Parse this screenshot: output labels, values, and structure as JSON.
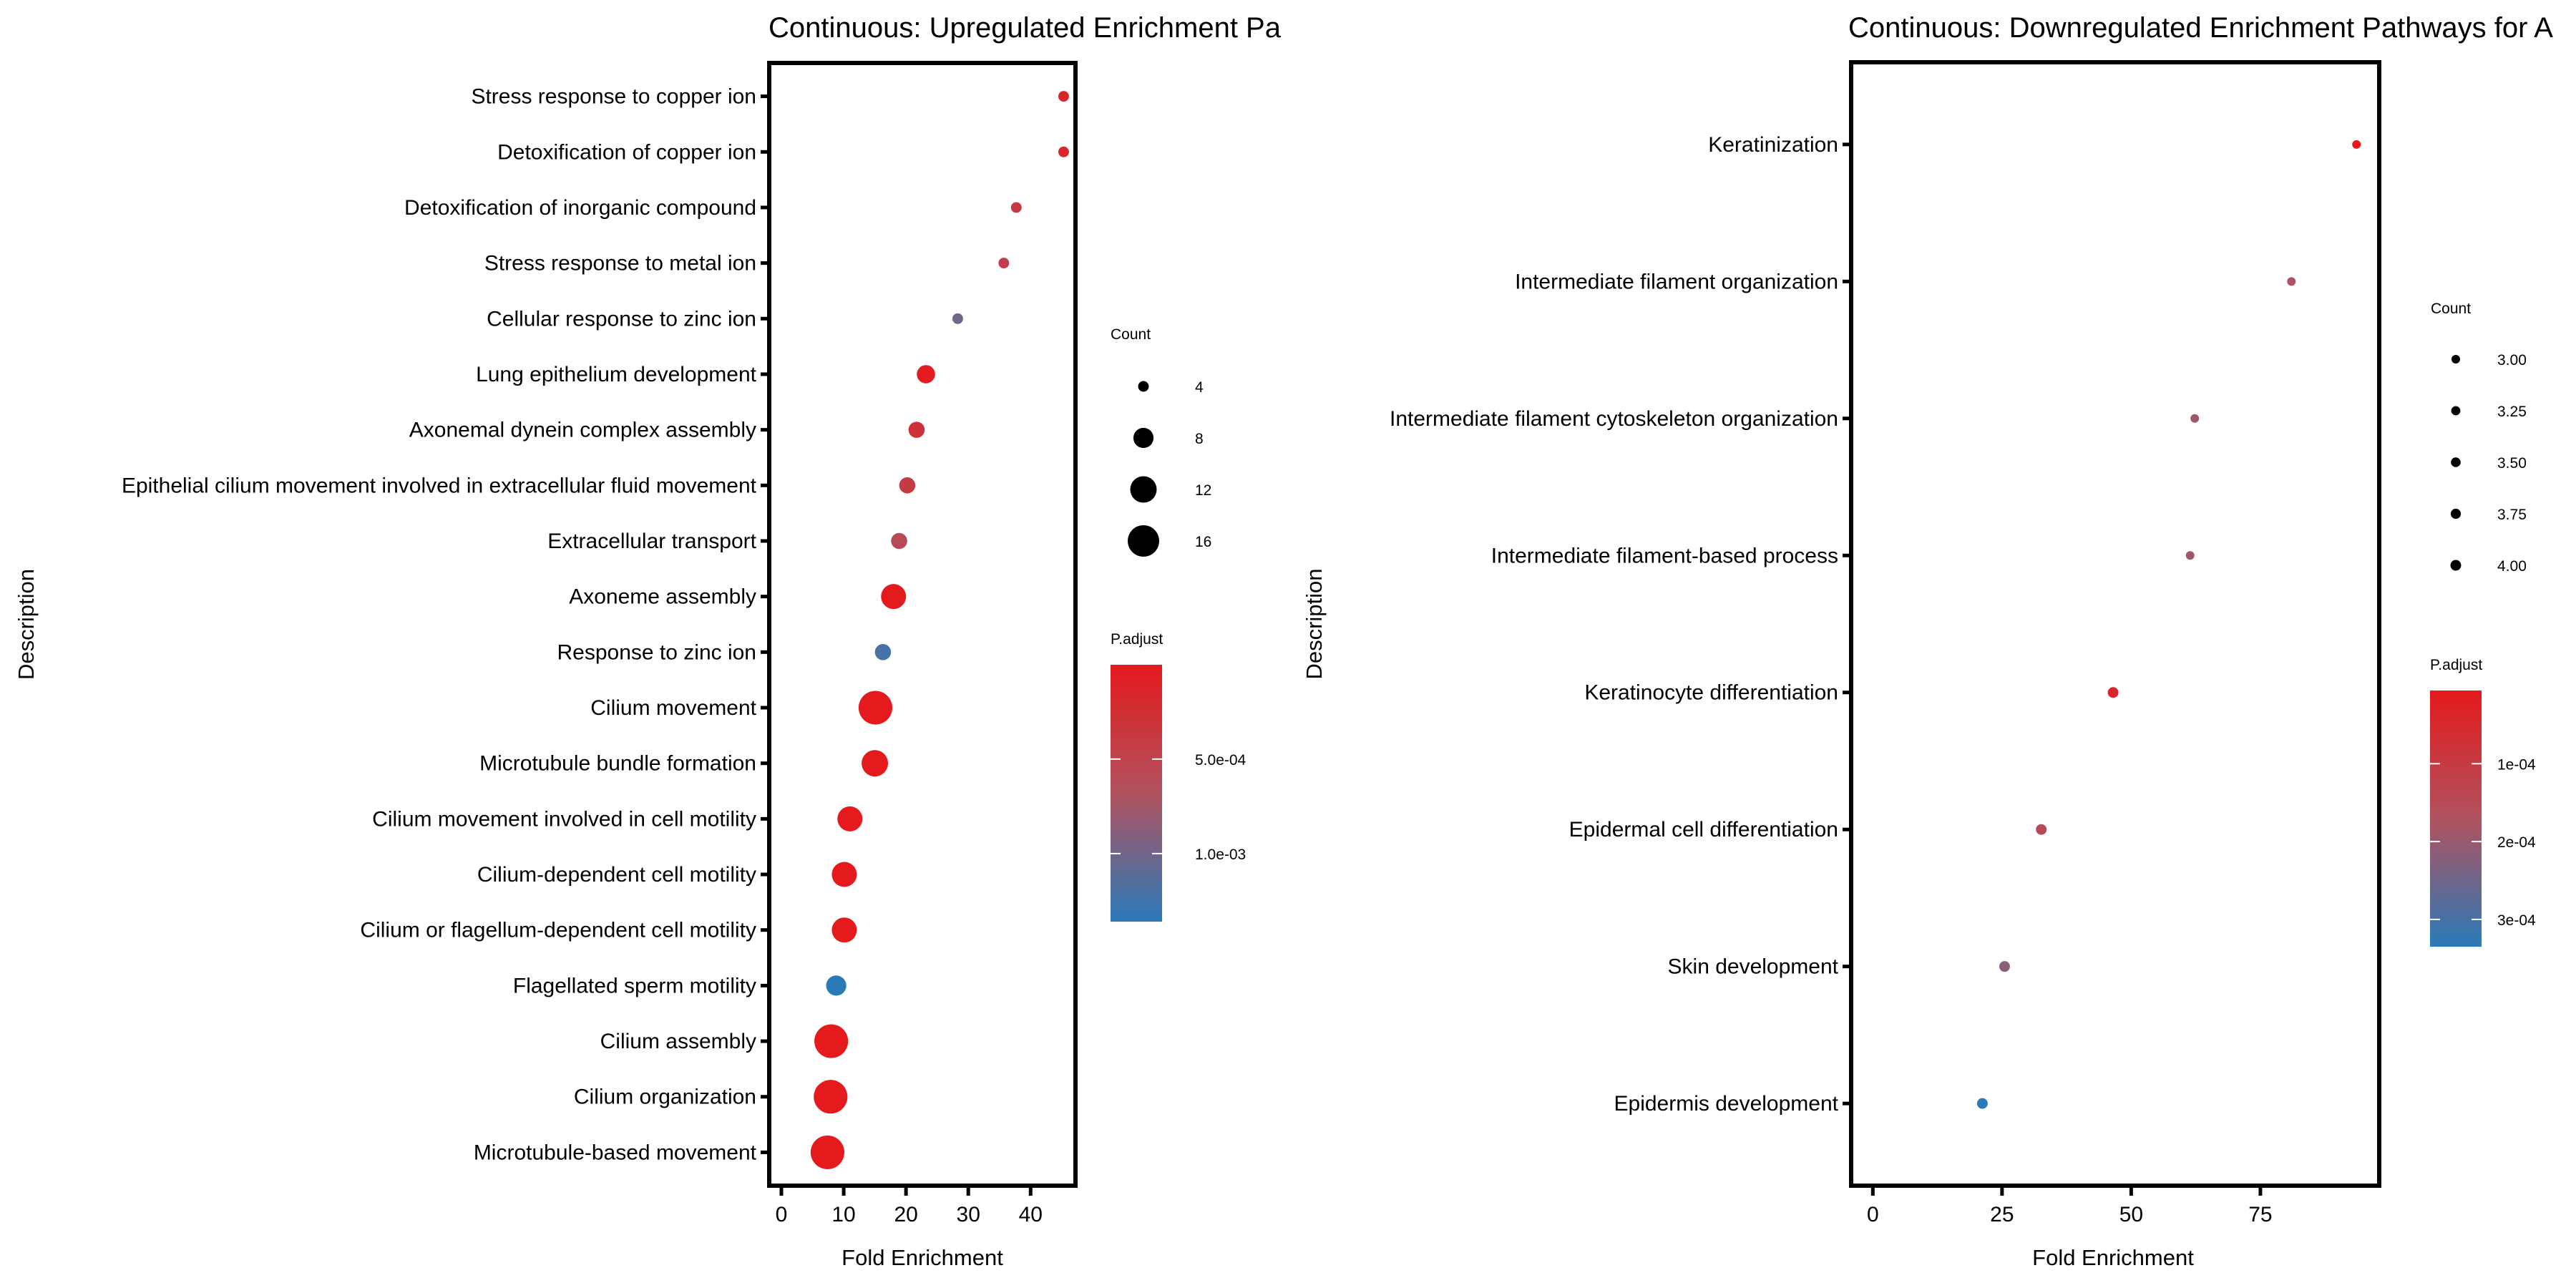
{
  "chart_data": [
    {
      "type": "scatter",
      "title": "Continuous: Upregulated Enrichment Pa",
      "xlabel": "Fold Enrichment",
      "ylabel": "Description",
      "xlim": [
        -1.95,
        47.2
      ],
      "xticks": [
        0,
        10,
        20,
        30,
        40
      ],
      "grid": false,
      "size_legend": {
        "title": "Count",
        "breaks": [
          "4",
          "8",
          "12",
          "16"
        ],
        "values": [
          4,
          8,
          12,
          16
        ]
      },
      "color_legend": {
        "title": "P.adjust",
        "breaks": [
          "5.0e-04",
          "1.0e-03"
        ],
        "values": [
          0.0005,
          0.001
        ],
        "range": [
          1e-06,
          0.00136
        ],
        "low_color": "#E41A1C",
        "high_color": "#2A7AB8"
      },
      "points": [
        {
          "label": "Stress response to copper ion",
          "x": 45.3,
          "count": 4,
          "p_adjust": 0.00015
        },
        {
          "label": "Detoxification of copper ion",
          "x": 45.3,
          "count": 4,
          "p_adjust": 0.00015
        },
        {
          "label": "Detoxification of inorganic compound",
          "x": 37.7,
          "count": 4,
          "p_adjust": 0.0004
        },
        {
          "label": "Stress response to metal ion",
          "x": 35.7,
          "count": 4,
          "p_adjust": 0.00045
        },
        {
          "label": "Cellular response to zinc ion",
          "x": 28.3,
          "count": 4,
          "p_adjust": 0.001
        },
        {
          "label": "Lung epithelium development",
          "x": 23.2,
          "count": 7,
          "p_adjust": 3e-05
        },
        {
          "label": "Axonemal dynein complex assembly",
          "x": 21.7,
          "count": 6,
          "p_adjust": 0.00028
        },
        {
          "label": "Epithelial cilium movement involved in extracellular fluid movement",
          "x": 20.2,
          "count": 6,
          "p_adjust": 0.0004
        },
        {
          "label": "Extracellular transport",
          "x": 18.9,
          "count": 6,
          "p_adjust": 0.0006
        },
        {
          "label": "Axoneme assembly",
          "x": 18.0,
          "count": 11,
          "p_adjust": 1e-05
        },
        {
          "label": "Response to zinc ion",
          "x": 16.3,
          "count": 6,
          "p_adjust": 0.00122
        },
        {
          "label": "Cilium movement",
          "x": 15.1,
          "count": 18,
          "p_adjust": 1e-06
        },
        {
          "label": "Microtubule bundle formation",
          "x": 15.0,
          "count": 12,
          "p_adjust": 1e-06
        },
        {
          "label": "Cilium movement involved in cell motility",
          "x": 11.0,
          "count": 11,
          "p_adjust": 2e-06
        },
        {
          "label": "Cilium-dependent cell motility",
          "x": 10.1,
          "count": 11,
          "p_adjust": 2e-06
        },
        {
          "label": "Cilium or flagellum-dependent cell motility",
          "x": 10.1,
          "count": 11,
          "p_adjust": 2e-06
        },
        {
          "label": "Flagellated sperm motility",
          "x": 8.8,
          "count": 8,
          "p_adjust": 0.00136
        },
        {
          "label": "Cilium assembly",
          "x": 8.0,
          "count": 18,
          "p_adjust": 1e-06
        },
        {
          "label": "Cilium organization",
          "x": 7.9,
          "count": 18,
          "p_adjust": 1e-06
        },
        {
          "label": "Microtubule-based movement",
          "x": 7.4,
          "count": 18,
          "p_adjust": 1e-06
        }
      ]
    },
    {
      "type": "scatter",
      "title": "Continuous: Downregulated Enrichment Pathways for A",
      "xlabel": "Fold Enrichment",
      "ylabel": "Description",
      "xlim": [
        -4.2,
        98
      ],
      "xticks": [
        0,
        25,
        50,
        75
      ],
      "grid": false,
      "size_legend": {
        "title": "Count",
        "breaks": [
          "3.00",
          "3.25",
          "3.50",
          "3.75",
          "4.00"
        ],
        "values": [
          3,
          3.25,
          3.5,
          3.75,
          4
        ]
      },
      "color_legend": {
        "title": "P.adjust",
        "breaks": [
          "1e-04",
          "2e-04",
          "3e-04"
        ],
        "values": [
          0.0001,
          0.0002,
          0.0003
        ],
        "range": [
          6e-06,
          0.000335
        ],
        "low_color": "#E41A1C",
        "high_color": "#2A7AB8"
      },
      "points": [
        {
          "label": "Keratinization",
          "x": 93.6,
          "count": 3,
          "p_adjust": 1e-05
        },
        {
          "label": "Intermediate filament organization",
          "x": 81.0,
          "count": 3,
          "p_adjust": 0.00017
        },
        {
          "label": "Intermediate filament cytoskeleton organization",
          "x": 62.3,
          "count": 3,
          "p_adjust": 0.00019
        },
        {
          "label": "Intermediate filament-based process",
          "x": 61.4,
          "count": 3,
          "p_adjust": 0.00019
        },
        {
          "label": "Keratinocyte differentiation",
          "x": 46.5,
          "count": 4,
          "p_adjust": 4e-05
        },
        {
          "label": "Epidermal cell differentiation",
          "x": 32.6,
          "count": 4,
          "p_adjust": 0.00015
        },
        {
          "label": "Skin development",
          "x": 25.5,
          "count": 4,
          "p_adjust": 0.00022
        },
        {
          "label": "Epidermis development",
          "x": 21.2,
          "count": 4,
          "p_adjust": 0.000335
        }
      ]
    }
  ]
}
